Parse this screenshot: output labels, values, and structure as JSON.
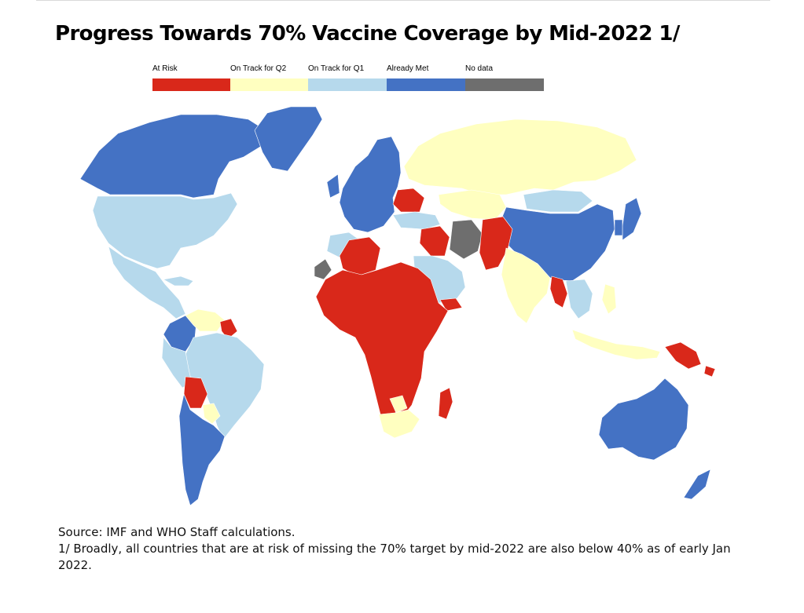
{
  "title": "Progress Towards 70% Vaccine Coverage by Mid-2022 1/",
  "legend": [
    {
      "label": "At Risk",
      "color": "#d9281a"
    },
    {
      "label": "On Track for Q2",
      "color": "#ffffc0"
    },
    {
      "label": "On Track for Q1",
      "color": "#b6d9ec"
    },
    {
      "label": "Already Met",
      "color": "#4472c4"
    },
    {
      "label": "No data",
      "color": "#6e6e6e"
    }
  ],
  "map": {
    "regions": [
      {
        "name": "North America",
        "status": "Already Met"
      },
      {
        "name": "Greenland",
        "status": "Already Met"
      },
      {
        "name": "United States",
        "status": "On Track for Q1"
      },
      {
        "name": "Mexico and Central America",
        "status": "On Track for Q1"
      },
      {
        "name": "Venezuela",
        "status": "On Track for Q2"
      },
      {
        "name": "Guyana",
        "status": "At Risk"
      },
      {
        "name": "Colombia",
        "status": "Already Met"
      },
      {
        "name": "Brazil",
        "status": "On Track for Q1"
      },
      {
        "name": "Bolivia",
        "status": "At Risk"
      },
      {
        "name": "Paraguay",
        "status": "On Track for Q2"
      },
      {
        "name": "Argentina and Chile",
        "status": "Already Met"
      },
      {
        "name": "Western Europe",
        "status": "Already Met"
      },
      {
        "name": "Ukraine",
        "status": "At Risk"
      },
      {
        "name": "Russia",
        "status": "On Track for Q2"
      },
      {
        "name": "Kazakhstan",
        "status": "On Track for Q2"
      },
      {
        "name": "China",
        "status": "Already Met"
      },
      {
        "name": "Mongolia",
        "status": "On Track for Q1"
      },
      {
        "name": "Japan",
        "status": "Already Met"
      },
      {
        "name": "Turkey",
        "status": "On Track for Q1"
      },
      {
        "name": "Middle East",
        "status": "On Track for Q1"
      },
      {
        "name": "Iraq and Syria",
        "status": "At Risk"
      },
      {
        "name": "Yemen",
        "status": "At Risk"
      },
      {
        "name": "Afghanistan and Pakistan",
        "status": "At Risk"
      },
      {
        "name": "Iran",
        "status": "No data"
      },
      {
        "name": "India",
        "status": "On Track for Q2"
      },
      {
        "name": "Myanmar",
        "status": "At Risk"
      },
      {
        "name": "Southeast Asia",
        "status": "On Track for Q1"
      },
      {
        "name": "Indonesia",
        "status": "On Track for Q2"
      },
      {
        "name": "Papua New Guinea",
        "status": "At Risk"
      },
      {
        "name": "Australia",
        "status": "Already Met"
      },
      {
        "name": "New Zealand",
        "status": "Already Met"
      },
      {
        "name": "Morocco and Tunisia",
        "status": "On Track for Q1"
      },
      {
        "name": "Algeria",
        "status": "At Risk"
      },
      {
        "name": "Western Sahara",
        "status": "No data"
      },
      {
        "name": "Sub-Saharan Africa",
        "status": "At Risk"
      },
      {
        "name": "Botswana",
        "status": "On Track for Q2"
      },
      {
        "name": "South Africa",
        "status": "On Track for Q2"
      },
      {
        "name": "Madagascar",
        "status": "At Risk"
      }
    ]
  },
  "source": {
    "line1": "Source: IMF and WHO Staff calculations.",
    "line2": "1/ Broadly, all countries that are at risk of missing the 70% target by mid-2022 are also below 40% as of early Jan 2022."
  }
}
